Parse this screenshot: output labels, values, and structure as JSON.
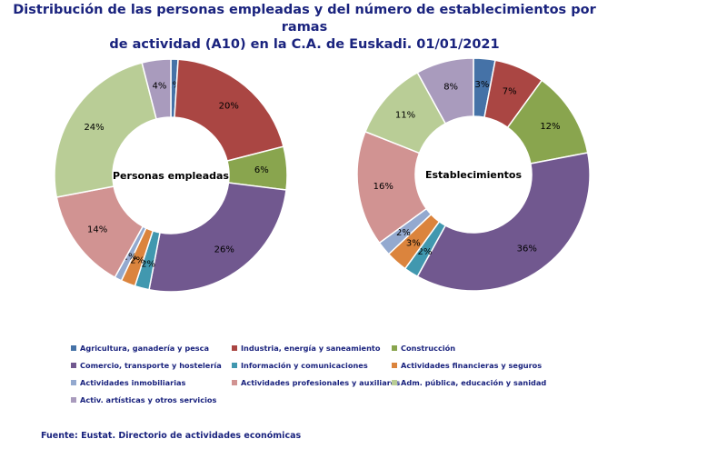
{
  "title": {
    "line1": "Distribución de las personas empleadas y del número de establecimientos por ramas",
    "line2": "de actividad (A10) en la C.A. de Euskadi. 01/01/2021"
  },
  "source": "Fuente: Eustat. Directorio de actividades económicas",
  "chart_data": [
    {
      "type": "pie",
      "title": "Personas empleadas",
      "categories": [
        "Agricultura, ganadería y pesca",
        "Industria, energía y saneamiento",
        "Construcción",
        "Comercio, transporte y hostelería",
        "Información y comunicaciones",
        "Actividades financieras y seguros",
        "Actividades inmobiliarias",
        "Actividades profesionales y auxiliares",
        "Adm. pública, educación y sanidad",
        "Activ. artísticas y otros servicios"
      ],
      "values": [
        1,
        20,
        6,
        26,
        2,
        2,
        1,
        14,
        24,
        4
      ],
      "labels": [
        "1%",
        "20%",
        "6%",
        "26%",
        "2%",
        "2%",
        "1%",
        "14%",
        "24%",
        "4%"
      ]
    },
    {
      "type": "pie",
      "title": "Establecimientos",
      "categories": [
        "Agricultura, ganadería y pesca",
        "Industria, energía y saneamiento",
        "Construcción",
        "Comercio, transporte y hostelería",
        "Información y comunicaciones",
        "Actividades financieras y seguros",
        "Actividades inmobiliarias",
        "Actividades profesionales y auxiliares",
        "Adm. pública, educación y sanidad",
        "Activ. artísticas y otros servicios"
      ],
      "values": [
        3,
        7,
        12,
        36,
        2,
        3,
        2,
        16,
        11,
        8
      ],
      "labels": [
        "3%",
        "7%",
        "12%",
        "36%",
        "2%",
        "3%",
        "2%",
        "16%",
        "11%",
        "8%"
      ]
    }
  ],
  "legend": {
    "items": [
      {
        "label": "Agricultura, ganadería y pesca",
        "color": "#4572a7"
      },
      {
        "label": "Industria, energía y saneamiento",
        "color": "#aa4643"
      },
      {
        "label": "Construcción",
        "color": "#89a54e"
      },
      {
        "label": "Comercio, transporte y hostelería",
        "color": "#71588f"
      },
      {
        "label": "Información y comunicaciones",
        "color": "#4198af"
      },
      {
        "label": "Actividades financieras y seguros",
        "color": "#db843d"
      },
      {
        "label": "Actividades inmobiliarias",
        "color": "#93a9cf"
      },
      {
        "label": "Actividades profesionales y auxiliares",
        "color": "#d19392"
      },
      {
        "label": "Adm. pública, educación y sanidad",
        "color": "#b9cd96"
      },
      {
        "label": "Activ. artísticas y otros servicios",
        "color": "#a99bbd"
      }
    ]
  }
}
